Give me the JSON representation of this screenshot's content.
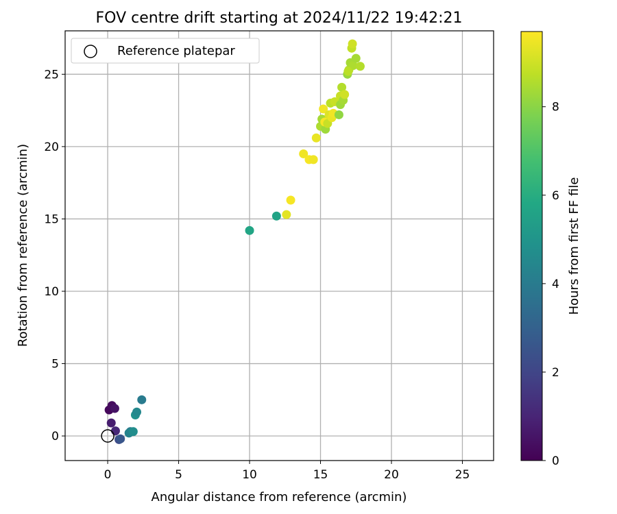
{
  "chart_data": {
    "type": "scatter",
    "title": "FOV centre drift starting at 2024/11/22 19:42:21",
    "xlabel": "Angular distance from reference (arcmin)",
    "ylabel": "Rotation from reference (arcmin)",
    "xlim": [
      -3,
      27.2
    ],
    "ylim": [
      -1.7,
      28.0
    ],
    "xticks": [
      0,
      5,
      10,
      15,
      20,
      25
    ],
    "yticks": [
      0,
      5,
      10,
      15,
      20,
      25
    ],
    "grid": true,
    "legend": {
      "placement": "top-left",
      "entries": [
        "Reference platepar"
      ]
    },
    "reference_point": {
      "x": 0,
      "y": 0
    },
    "colorbar": {
      "label": "Hours from first FF file",
      "min": 0,
      "max": 9.7,
      "ticks": [
        0,
        2,
        4,
        6,
        8
      ],
      "colormap": "viridis"
    },
    "points": [
      {
        "x": 0.1,
        "y": 1.8,
        "t": 0.2
      },
      {
        "x": 0.3,
        "y": 2.1,
        "t": 0.3
      },
      {
        "x": 0.5,
        "y": 1.9,
        "t": 0.5
      },
      {
        "x": 0.25,
        "y": 0.9,
        "t": 0.8
      },
      {
        "x": 0.55,
        "y": 0.35,
        "t": 1.1
      },
      {
        "x": 0.8,
        "y": -0.25,
        "t": 2.2
      },
      {
        "x": 0.9,
        "y": -0.2,
        "t": 2.6
      },
      {
        "x": 1.6,
        "y": 0.3,
        "t": 3.9
      },
      {
        "x": 1.5,
        "y": 0.2,
        "t": 4.3
      },
      {
        "x": 1.8,
        "y": 0.3,
        "t": 4.7
      },
      {
        "x": 1.95,
        "y": 1.45,
        "t": 4.8
      },
      {
        "x": 2.05,
        "y": 1.65,
        "t": 4.5
      },
      {
        "x": 2.4,
        "y": 2.5,
        "t": 4.0
      },
      {
        "x": 10.0,
        "y": 14.2,
        "t": 5.7
      },
      {
        "x": 11.9,
        "y": 15.2,
        "t": 5.6
      },
      {
        "x": 12.6,
        "y": 15.3,
        "t": 9.3
      },
      {
        "x": 12.9,
        "y": 16.3,
        "t": 9.6
      },
      {
        "x": 13.8,
        "y": 19.5,
        "t": 9.5
      },
      {
        "x": 14.2,
        "y": 19.1,
        "t": 9.6
      },
      {
        "x": 14.5,
        "y": 19.1,
        "t": 9.5
      },
      {
        "x": 14.7,
        "y": 20.6,
        "t": 9.4
      },
      {
        "x": 15.0,
        "y": 21.4,
        "t": 8.5
      },
      {
        "x": 15.1,
        "y": 21.9,
        "t": 8.4
      },
      {
        "x": 15.2,
        "y": 22.6,
        "t": 9.5
      },
      {
        "x": 15.35,
        "y": 21.2,
        "t": 8.3
      },
      {
        "x": 15.3,
        "y": 21.7,
        "t": 9.6
      },
      {
        "x": 15.5,
        "y": 21.6,
        "t": 8.9
      },
      {
        "x": 15.6,
        "y": 22.2,
        "t": 9.2
      },
      {
        "x": 15.7,
        "y": 23.0,
        "t": 8.7
      },
      {
        "x": 15.8,
        "y": 22.0,
        "t": 9.4
      },
      {
        "x": 15.9,
        "y": 22.3,
        "t": 9.5
      },
      {
        "x": 16.0,
        "y": 23.1,
        "t": 8.9
      },
      {
        "x": 16.3,
        "y": 22.2,
        "t": 8.1
      },
      {
        "x": 16.4,
        "y": 23.5,
        "t": 8.9
      },
      {
        "x": 16.4,
        "y": 22.9,
        "t": 8.3
      },
      {
        "x": 16.5,
        "y": 24.1,
        "t": 8.6
      },
      {
        "x": 16.6,
        "y": 23.2,
        "t": 8.4
      },
      {
        "x": 16.7,
        "y": 23.6,
        "t": 9.0
      },
      {
        "x": 16.9,
        "y": 25.0,
        "t": 8.2
      },
      {
        "x": 17.0,
        "y": 25.3,
        "t": 8.6
      },
      {
        "x": 17.1,
        "y": 25.8,
        "t": 8.4
      },
      {
        "x": 17.2,
        "y": 26.8,
        "t": 8.8
      },
      {
        "x": 17.25,
        "y": 27.1,
        "t": 9.0
      },
      {
        "x": 17.3,
        "y": 25.6,
        "t": 8.5
      },
      {
        "x": 17.5,
        "y": 26.1,
        "t": 8.4
      },
      {
        "x": 17.8,
        "y": 25.55,
        "t": 8.6
      },
      {
        "x": 16.95,
        "y": 25.2,
        "t": 8.7
      }
    ]
  }
}
